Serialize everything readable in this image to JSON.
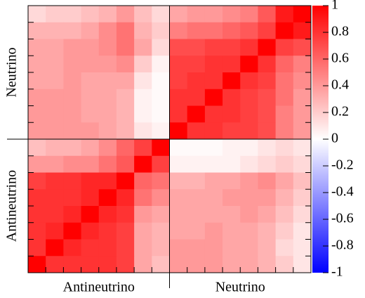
{
  "chart_data": {
    "type": "heatmap",
    "x_groups": [
      "Antineutrino",
      "Neutrino"
    ],
    "y_groups": [
      "Neutrino",
      "Antineutrino"
    ],
    "colors": [
      "#0000ff",
      "#ffffff",
      "#ff0000"
    ],
    "zlim": [
      -1,
      1
    ],
    "zticks": [
      1,
      0.8,
      0.6,
      0.4,
      0.2,
      0,
      -0.2,
      -0.4,
      -0.6,
      -0.8,
      -1
    ],
    "z": [
      [
        0.15,
        0.2,
        0.2,
        0.25,
        0.3,
        0.4,
        0.25,
        0.15,
        0.35,
        0.4,
        0.4,
        0.45,
        0.5,
        0.65,
        0.9,
        1
      ],
      [
        0.3,
        0.3,
        0.3,
        0.35,
        0.45,
        0.55,
        0.3,
        0.2,
        0.5,
        0.55,
        0.55,
        0.6,
        0.65,
        0.75,
        1,
        0.9
      ],
      [
        0.35,
        0.35,
        0.4,
        0.4,
        0.45,
        0.55,
        0.35,
        0.15,
        0.7,
        0.7,
        0.75,
        0.75,
        0.8,
        1,
        0.75,
        0.7
      ],
      [
        0.35,
        0.35,
        0.4,
        0.4,
        0.4,
        0.45,
        0.2,
        0.05,
        0.75,
        0.75,
        0.8,
        0.8,
        1,
        0.8,
        0.6,
        0.5
      ],
      [
        0.35,
        0.35,
        0.4,
        0.35,
        0.35,
        0.35,
        0.1,
        0.02,
        0.75,
        0.8,
        0.8,
        1,
        0.8,
        0.75,
        0.55,
        0.45
      ],
      [
        0.4,
        0.4,
        0.4,
        0.35,
        0.35,
        0.3,
        0.05,
        0.02,
        0.8,
        0.8,
        1,
        0.8,
        0.75,
        0.7,
        0.55,
        0.4
      ],
      [
        0.4,
        0.4,
        0.4,
        0.35,
        0.35,
        0.3,
        0.05,
        0.02,
        0.8,
        1,
        0.8,
        0.8,
        0.75,
        0.7,
        0.5,
        0.4
      ],
      [
        0.4,
        0.4,
        0.4,
        0.4,
        0.35,
        0.3,
        0.1,
        0.05,
        1,
        0.8,
        0.8,
        0.75,
        0.75,
        0.7,
        0.5,
        0.4
      ],
      [
        0.25,
        0.3,
        0.3,
        0.35,
        0.45,
        0.6,
        0.75,
        1,
        0.02,
        0.02,
        0.02,
        0.05,
        0.05,
        0.1,
        0.15,
        0.1
      ],
      [
        0.4,
        0.4,
        0.45,
        0.45,
        0.55,
        0.65,
        1,
        0.75,
        0.05,
        0.05,
        0.05,
        0.05,
        0.1,
        0.15,
        0.2,
        0.15
      ],
      [
        0.75,
        0.8,
        0.8,
        0.85,
        0.85,
        1,
        0.6,
        0.55,
        0.3,
        0.3,
        0.35,
        0.35,
        0.4,
        0.45,
        0.35,
        0.25
      ],
      [
        0.8,
        0.8,
        0.8,
        0.85,
        1,
        0.85,
        0.55,
        0.45,
        0.35,
        0.35,
        0.35,
        0.4,
        0.4,
        0.4,
        0.3,
        0.2
      ],
      [
        0.8,
        0.8,
        0.85,
        1,
        0.85,
        0.8,
        0.4,
        0.35,
        0.35,
        0.35,
        0.35,
        0.35,
        0.4,
        0.35,
        0.25,
        0.15
      ],
      [
        0.8,
        0.85,
        1,
        0.85,
        0.8,
        0.75,
        0.35,
        0.3,
        0.35,
        0.35,
        0.4,
        0.35,
        0.35,
        0.3,
        0.2,
        0.1
      ],
      [
        0.8,
        1,
        0.85,
        0.8,
        0.8,
        0.75,
        0.35,
        0.3,
        0.4,
        0.4,
        0.4,
        0.35,
        0.35,
        0.3,
        0.15,
        0.1
      ],
      [
        1,
        0.8,
        0.8,
        0.8,
        0.8,
        0.75,
        0.35,
        0.25,
        0.4,
        0.4,
        0.4,
        0.35,
        0.35,
        0.3,
        0.2,
        0.1
      ]
    ]
  }
}
